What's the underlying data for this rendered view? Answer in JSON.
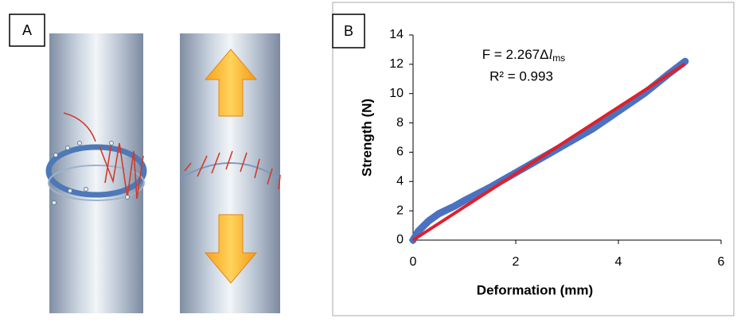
{
  "panels": {
    "a": "A",
    "b": "B"
  },
  "chart_data": {
    "type": "scatter",
    "x_label": "Deformation (mm)",
    "y_label": "Strength (N)",
    "annotation": {
      "prefix": "F = 2.267Δ",
      "variable": "l",
      "subscript": "ms",
      "r_squared": "R² = 0.993"
    },
    "xlim": [
      0,
      6
    ],
    "xticks": [
      0,
      2,
      4,
      6
    ],
    "ylim": [
      0,
      14
    ],
    "yticks": [
      0,
      2,
      4,
      6,
      8,
      10,
      12,
      14
    ],
    "grid": false,
    "series": [
      {
        "color": "#4a72c0",
        "mode": "markers",
        "x": [
          0,
          0.1,
          0.3,
          0.5,
          0.8,
          1.0,
          1.5,
          2.0,
          2.5,
          3.0,
          3.5,
          4.0,
          4.5,
          5.0,
          5.3
        ],
        "values": [
          0,
          0.6,
          1.3,
          1.8,
          2.3,
          2.7,
          3.6,
          4.6,
          5.6,
          6.6,
          7.6,
          8.8,
          10.0,
          11.4,
          12.2
        ]
      },
      {
        "color": "#e0202a",
        "mode": "line",
        "x": [
          0,
          5.3
        ],
        "values": [
          0,
          12.02
        ]
      }
    ]
  }
}
